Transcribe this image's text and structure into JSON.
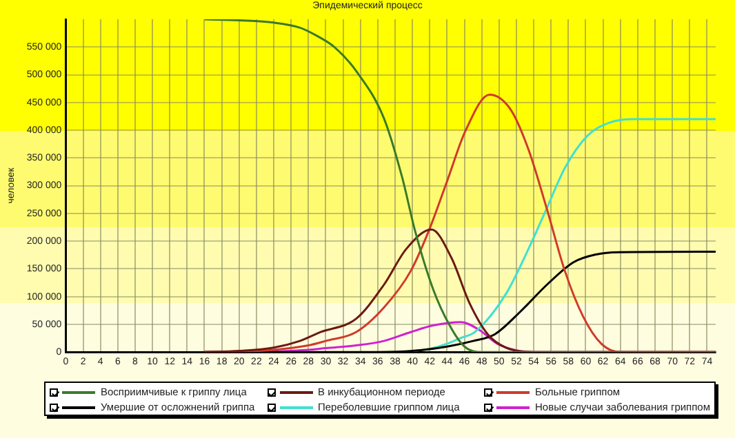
{
  "chart_data": {
    "type": "line",
    "title": "Эпидемический процесс",
    "ylabel": "человек",
    "xlim": [
      0,
      75
    ],
    "xticks": [
      0,
      2,
      4,
      6,
      8,
      10,
      12,
      14,
      16,
      18,
      20,
      22,
      24,
      26,
      28,
      30,
      32,
      34,
      36,
      38,
      40,
      42,
      44,
      46,
      48,
      50,
      52,
      54,
      56,
      58,
      60,
      62,
      64,
      66,
      68,
      70,
      72,
      74
    ],
    "ylim": [
      0,
      600000
    ],
    "yticks": [
      {
        "value": 0,
        "label": "0"
      },
      {
        "value": 50000,
        "label": "50 000"
      },
      {
        "value": 100000,
        "label": "100 000"
      },
      {
        "value": 150000,
        "label": "150 000"
      },
      {
        "value": 200000,
        "label": "200 000"
      },
      {
        "value": 250000,
        "label": "250 000"
      },
      {
        "value": 300000,
        "label": "300 000"
      },
      {
        "value": 350000,
        "label": "350 000"
      },
      {
        "value": 400000,
        "label": "400 000"
      },
      {
        "value": 450000,
        "label": "450 000"
      },
      {
        "value": 500000,
        "label": "500 000"
      },
      {
        "value": 550000,
        "label": "550 000"
      }
    ],
    "grid": true,
    "legend": "bottom",
    "marker": "none",
    "line_style": "solid",
    "series": [
      {
        "name": "Восприимчивые к гриппу лица",
        "color": "#3a7a2a",
        "x": [
          16,
          20,
          24,
          27,
          29,
          31,
          33.5,
          36.7,
          38.8,
          40.3,
          42.4,
          44.3,
          46,
          48,
          75
        ],
        "values": [
          600000,
          598000,
          594000,
          585000,
          570000,
          550000,
          507000,
          422000,
          316000,
          219000,
          113000,
          48000,
          10000,
          0,
          0
        ]
      },
      {
        "name": "В инкубационном периоде",
        "color": "#6b1a10",
        "x": [
          16,
          20,
          24,
          27,
          29.4,
          33.5,
          36.7,
          39.3,
          42.2,
          44.5,
          46.6,
          48.7,
          50.8,
          54,
          75
        ],
        "values": [
          0,
          2000,
          8000,
          20000,
          36000,
          60000,
          121000,
          186000,
          221000,
          170000,
          88000,
          32000,
          8000,
          0,
          0
        ]
      },
      {
        "name": "Больные гриппом",
        "color": "#d03a2a",
        "x": [
          16,
          20,
          24,
          28,
          30,
          33.5,
          36.7,
          39.8,
          41.9,
          44,
          46.1,
          48.9,
          51.3,
          53.4,
          55.5,
          57.6,
          59.7,
          61.8,
          64,
          75
        ],
        "values": [
          0,
          1000,
          4000,
          12000,
          20000,
          36000,
          80000,
          146000,
          219000,
          308000,
          398000,
          464000,
          438000,
          365000,
          259000,
          146000,
          64000,
          15000,
          0,
          0
        ]
      },
      {
        "name": "Умершие от осложнений гриппа",
        "color": "#000000",
        "x": [
          16,
          36,
          40,
          44,
          47,
          49.5,
          52.4,
          55.5,
          58.6,
          61.2,
          63.8,
          75
        ],
        "values": [
          0,
          0,
          2000,
          10000,
          20000,
          32000,
          72000,
          121000,
          162000,
          176000,
          180000,
          181000
        ]
      },
      {
        "name": "Переболевшие гриппом лица",
        "color": "#40e0d0",
        "x": [
          40,
          42,
          44,
          45.5,
          47.2,
          50.8,
          53.4,
          55.5,
          57.6,
          60.2,
          62.8,
          65.5,
          75
        ],
        "values": [
          2000,
          6000,
          15000,
          25000,
          36000,
          105000,
          186000,
          259000,
          332000,
          390000,
          414000,
          420000,
          420000
        ]
      },
      {
        "name": "Новые случаи заболевания гриппом",
        "color": "#d020d0",
        "x": [
          16,
          24,
          28,
          30,
          33.5,
          36.7,
          39.8,
          42.4,
          45.6,
          47.7,
          49.8,
          52,
          54,
          75
        ],
        "values": [
          0,
          1000,
          4000,
          7000,
          12000,
          20000,
          36000,
          48000,
          54000,
          40000,
          15000,
          3000,
          0,
          0
        ]
      }
    ]
  }
}
